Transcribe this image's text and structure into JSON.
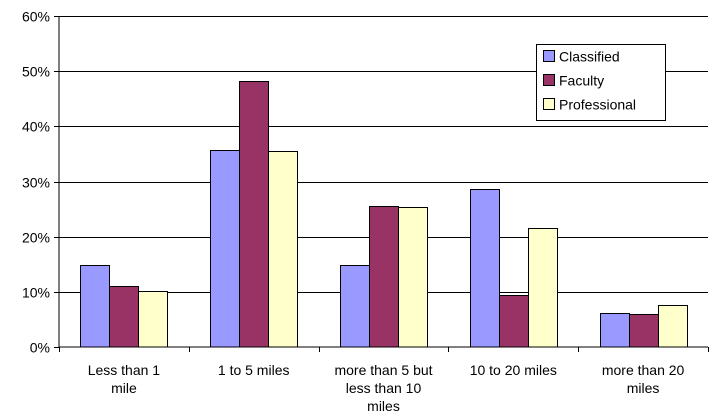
{
  "chart_data": {
    "type": "bar",
    "title": "",
    "xlabel": "",
    "ylabel": "",
    "ylim": [
      0,
      60
    ],
    "y_tick_values": [
      0,
      10,
      20,
      30,
      40,
      50,
      60
    ],
    "y_ticks": [
      "0%",
      "10%",
      "20%",
      "30%",
      "40%",
      "50%",
      "60%"
    ],
    "grid": true,
    "legend_position": "top-right",
    "categories": [
      [
        "Less than 1",
        "mile"
      ],
      [
        "1 to 5 miles"
      ],
      [
        "more than 5 but",
        "less than 10",
        "miles"
      ],
      [
        "10 to 20 miles"
      ],
      [
        "more than 20",
        "miles"
      ]
    ],
    "series": [
      {
        "name": "Classified",
        "color": "#9999FF",
        "values": [
          14.8,
          35.7,
          14.8,
          28.7,
          6.1
        ]
      },
      {
        "name": "Faculty",
        "color": "#993366",
        "values": [
          11.0,
          48.3,
          25.5,
          9.4,
          5.9
        ]
      },
      {
        "name": "Professional",
        "color": "#FFFFCC",
        "values": [
          10.1,
          35.5,
          25.4,
          21.6,
          7.6
        ]
      }
    ]
  }
}
